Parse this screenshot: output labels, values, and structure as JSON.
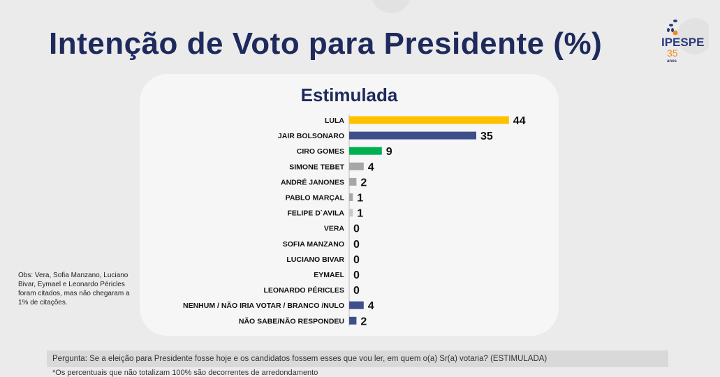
{
  "title": "Intenção de Voto para Presidente (%)",
  "logo": {
    "name": "IPESPE",
    "years": "35",
    "sub": "anos"
  },
  "obs": "Obs: Vera, Sofia Manzano, Luciano Bivar, Eymael e Leonardo Péricles foram citados, mas não chegaram a 1% de citações.",
  "question": "Pergunta:  Se a eleição para Presidente fosse hoje e os candidatos fossem esses que vou ler, em quem o(a) Sr(a) votaria? (ESTIMULADA)",
  "footnote": "*Os percentuais que não totalizam 100% são decorrentes de arredondamento",
  "chart_data": {
    "type": "bar",
    "orientation": "horizontal",
    "title": "Estimulada",
    "categories": [
      "LULA",
      "JAIR BOLSONARO",
      "CIRO GOMES",
      "SIMONE TEBET",
      "ANDRÉ JANONES",
      "PABLO MARÇAL",
      "FELIPE D`AVILA",
      "VERA",
      "SOFIA MANZANO",
      "LUCIANO BIVAR",
      "EYMAEL",
      "LEONARDO PÉRICLES",
      "NENHUM / NÃO IRIA VOTAR / BRANCO /NULO",
      "NÃO SABE/NÃO RESPONDEU"
    ],
    "values": [
      44,
      35,
      9,
      4,
      2,
      1,
      1,
      0,
      0,
      0,
      0,
      0,
      4,
      2
    ],
    "colors": [
      "#ffc000",
      "#3f4f8a",
      "#00b050",
      "#a6a6a6",
      "#a6a6a6",
      "#a6a6a6",
      "#c8c8c8",
      "#a6a6a6",
      "#a6a6a6",
      "#a6a6a6",
      "#a6a6a6",
      "#a6a6a6",
      "#3f4f8a",
      "#3f4f8a"
    ],
    "xlim": [
      0,
      50
    ],
    "grid": false
  }
}
